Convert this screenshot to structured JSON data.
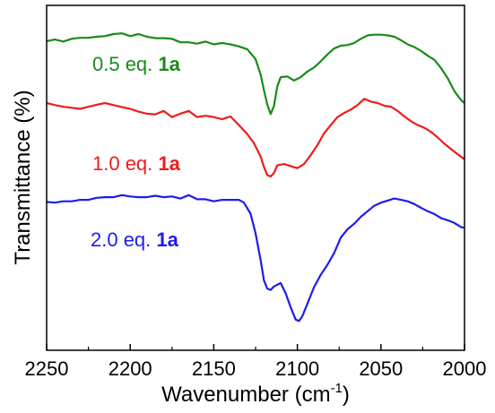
{
  "chart_data": {
    "type": "line",
    "xlabel": "Wavenumber (cm",
    "xlabel_sup": "-1",
    "xlabel_close": ")",
    "ylabel": "Transmittance (%)",
    "xlim": [
      2250,
      2000
    ],
    "x_reversed": true,
    "ylim": [
      0,
      100
    ],
    "y_ticks_labeled": false,
    "grid": false,
    "x_ticks": [
      "2250",
      "2200",
      "2150",
      "2100",
      "2050",
      "2000"
    ],
    "series": [
      {
        "name_prefix": "0.5 eq. ",
        "name_bold": "1a",
        "color": "#1a8a1a",
        "points": [
          [
            2250,
            89.6
          ],
          [
            2245,
            90.1
          ],
          [
            2240,
            89.5
          ],
          [
            2235,
            90.3
          ],
          [
            2230,
            90.6
          ],
          [
            2225,
            90.6
          ],
          [
            2220,
            90.9
          ],
          [
            2215,
            91.1
          ],
          [
            2210,
            91.7
          ],
          [
            2205,
            91.9
          ],
          [
            2200,
            91.1
          ],
          [
            2195,
            91.7
          ],
          [
            2190,
            90.9
          ],
          [
            2185,
            90.5
          ],
          [
            2180,
            90.5
          ],
          [
            2175,
            90.3
          ],
          [
            2170,
            89.3
          ],
          [
            2165,
            89.3
          ],
          [
            2160,
            88.9
          ],
          [
            2155,
            89.5
          ],
          [
            2150,
            88.7
          ],
          [
            2145,
            89.1
          ],
          [
            2140,
            88.7
          ],
          [
            2135,
            88.1
          ],
          [
            2130,
            87.3
          ],
          [
            2125,
            84.4
          ],
          [
            2122,
            80.0
          ],
          [
            2120,
            75.5
          ],
          [
            2118,
            71.3
          ],
          [
            2116,
            68.5
          ],
          [
            2114,
            70.8
          ],
          [
            2112,
            76.5
          ],
          [
            2110,
            79.2
          ],
          [
            2106,
            79.4
          ],
          [
            2102,
            78.2
          ],
          [
            2098,
            79.2
          ],
          [
            2094,
            80.8
          ],
          [
            2090,
            82.0
          ],
          [
            2086,
            83.8
          ],
          [
            2082,
            85.8
          ],
          [
            2078,
            87.5
          ],
          [
            2074,
            88.3
          ],
          [
            2070,
            88.5
          ],
          [
            2066,
            89.1
          ],
          [
            2062,
            90.3
          ],
          [
            2058,
            91.3
          ],
          [
            2054,
            91.5
          ],
          [
            2050,
            91.5
          ],
          [
            2046,
            91.3
          ],
          [
            2042,
            90.9
          ],
          [
            2038,
            89.9
          ],
          [
            2034,
            88.7
          ],
          [
            2030,
            87.9
          ],
          [
            2026,
            86.8
          ],
          [
            2022,
            85.4
          ],
          [
            2018,
            84.2
          ],
          [
            2014,
            81.8
          ],
          [
            2010,
            78.8
          ],
          [
            2006,
            75.1
          ],
          [
            2002,
            72.5
          ],
          [
            2000,
            71.7
          ]
        ]
      },
      {
        "name_prefix": "1.0 eq. ",
        "name_bold": "1a",
        "color": "#ee1c1c",
        "points": [
          [
            2250,
            71.7
          ],
          [
            2245,
            71.1
          ],
          [
            2240,
            70.6
          ],
          [
            2235,
            70.3
          ],
          [
            2230,
            70.0
          ],
          [
            2225,
            70.6
          ],
          [
            2220,
            71.2
          ],
          [
            2215,
            71.7
          ],
          [
            2210,
            71.1
          ],
          [
            2205,
            70.5
          ],
          [
            2200,
            70.0
          ],
          [
            2195,
            69.2
          ],
          [
            2190,
            68.6
          ],
          [
            2185,
            68.4
          ],
          [
            2180,
            69.4
          ],
          [
            2175,
            67.6
          ],
          [
            2170,
            68.6
          ],
          [
            2165,
            69.4
          ],
          [
            2160,
            67.6
          ],
          [
            2155,
            68.0
          ],
          [
            2150,
            67.6
          ],
          [
            2145,
            67.0
          ],
          [
            2140,
            67.8
          ],
          [
            2135,
            65.3
          ],
          [
            2130,
            62.7
          ],
          [
            2126,
            60.1
          ],
          [
            2122,
            56.2
          ],
          [
            2120,
            53.2
          ],
          [
            2118,
            50.8
          ],
          [
            2116,
            50.4
          ],
          [
            2114,
            51.4
          ],
          [
            2112,
            53.6
          ],
          [
            2108,
            54.0
          ],
          [
            2104,
            53.4
          ],
          [
            2100,
            52.8
          ],
          [
            2096,
            54.0
          ],
          [
            2092,
            56.6
          ],
          [
            2088,
            59.5
          ],
          [
            2084,
            62.9
          ],
          [
            2080,
            65.3
          ],
          [
            2076,
            67.6
          ],
          [
            2072,
            68.8
          ],
          [
            2068,
            69.8
          ],
          [
            2064,
            71.1
          ],
          [
            2060,
            72.9
          ],
          [
            2056,
            72.1
          ],
          [
            2052,
            71.7
          ],
          [
            2048,
            70.9
          ],
          [
            2044,
            70.6
          ],
          [
            2040,
            69.4
          ],
          [
            2036,
            67.8
          ],
          [
            2032,
            66.4
          ],
          [
            2028,
            65.3
          ],
          [
            2024,
            64.5
          ],
          [
            2020,
            63.3
          ],
          [
            2016,
            61.7
          ],
          [
            2012,
            59.9
          ],
          [
            2008,
            58.3
          ],
          [
            2004,
            56.8
          ],
          [
            2000,
            55.4
          ]
        ]
      },
      {
        "name_prefix": "2.0 eq. ",
        "name_bold": "1a",
        "color": "#1c1cee",
        "points": [
          [
            2250,
            43.0
          ],
          [
            2245,
            42.8
          ],
          [
            2240,
            43.2
          ],
          [
            2235,
            43.2
          ],
          [
            2230,
            43.6
          ],
          [
            2225,
            43.6
          ],
          [
            2220,
            44.2
          ],
          [
            2215,
            44.4
          ],
          [
            2210,
            44.4
          ],
          [
            2205,
            45.0
          ],
          [
            2200,
            44.6
          ],
          [
            2195,
            44.4
          ],
          [
            2190,
            44.4
          ],
          [
            2185,
            44.8
          ],
          [
            2180,
            44.4
          ],
          [
            2175,
            44.6
          ],
          [
            2170,
            44.0
          ],
          [
            2165,
            45.0
          ],
          [
            2160,
            43.8
          ],
          [
            2155,
            43.8
          ],
          [
            2150,
            43.2
          ],
          [
            2145,
            43.6
          ],
          [
            2140,
            43.6
          ],
          [
            2135,
            43.6
          ],
          [
            2132,
            42.8
          ],
          [
            2128,
            39.6
          ],
          [
            2125,
            33.9
          ],
          [
            2122,
            26.2
          ],
          [
            2120,
            20.3
          ],
          [
            2118,
            17.9
          ],
          [
            2116,
            17.5
          ],
          [
            2114,
            18.5
          ],
          [
            2110,
            19.5
          ],
          [
            2107,
            16.5
          ],
          [
            2104,
            12.5
          ],
          [
            2101,
            8.9
          ],
          [
            2099,
            8.5
          ],
          [
            2097,
            9.9
          ],
          [
            2094,
            13.5
          ],
          [
            2090,
            18.3
          ],
          [
            2086,
            21.9
          ],
          [
            2082,
            24.8
          ],
          [
            2078,
            28.2
          ],
          [
            2074,
            32.7
          ],
          [
            2070,
            35.1
          ],
          [
            2066,
            36.7
          ],
          [
            2062,
            38.7
          ],
          [
            2058,
            40.3
          ],
          [
            2054,
            41.9
          ],
          [
            2050,
            42.8
          ],
          [
            2046,
            43.4
          ],
          [
            2042,
            44.0
          ],
          [
            2038,
            43.6
          ],
          [
            2034,
            43.2
          ],
          [
            2030,
            42.4
          ],
          [
            2026,
            41.3
          ],
          [
            2022,
            40.3
          ],
          [
            2018,
            39.5
          ],
          [
            2014,
            38.3
          ],
          [
            2010,
            37.7
          ],
          [
            2006,
            36.9
          ],
          [
            2002,
            35.7
          ],
          [
            2000,
            35.5
          ]
        ]
      }
    ]
  }
}
